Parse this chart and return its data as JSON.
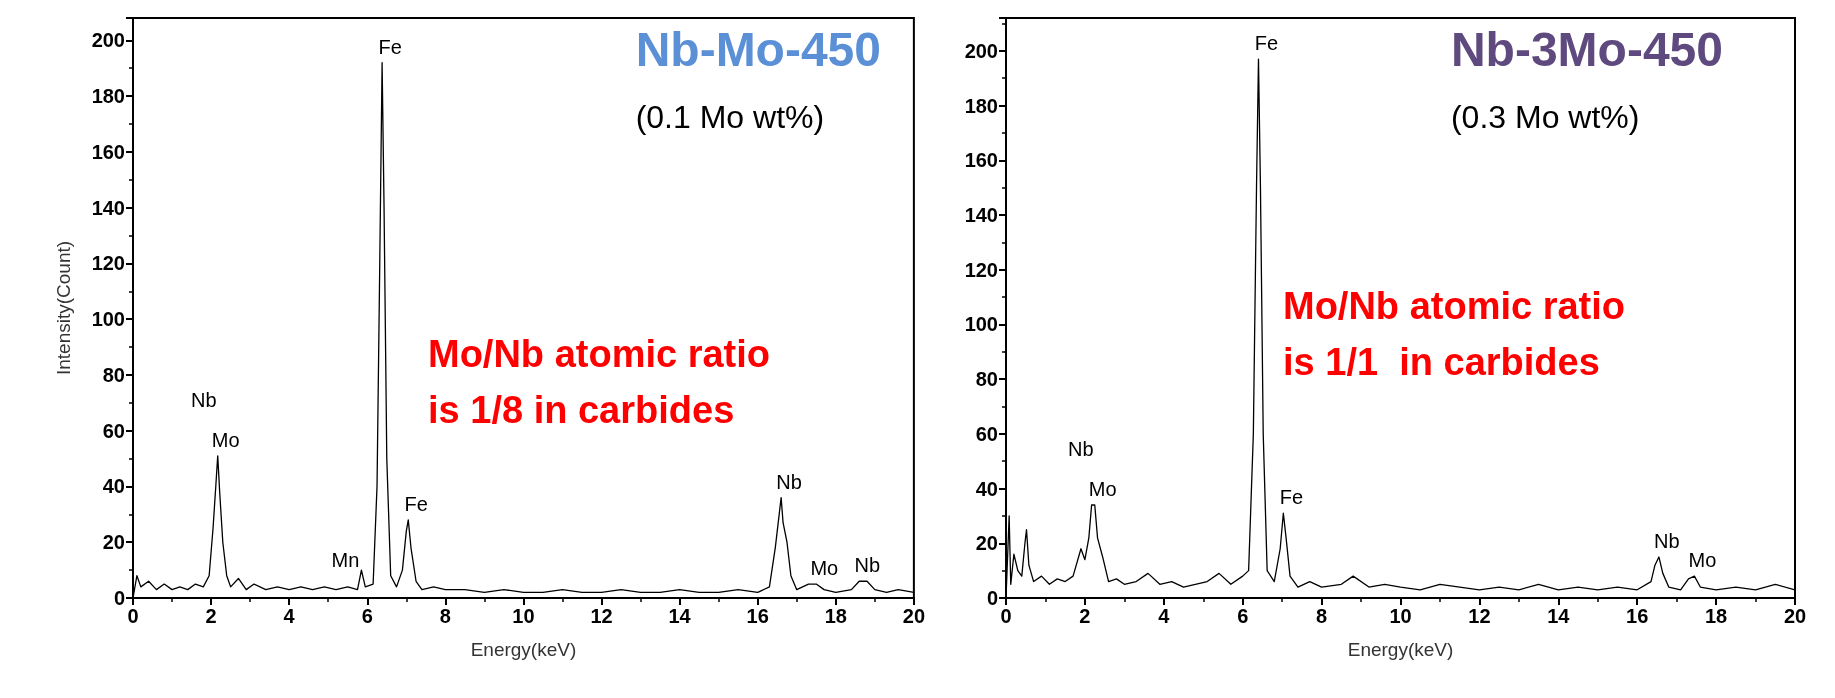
{
  "chart_data": [
    {
      "type": "line",
      "title": "Nb-Mo-450",
      "subtitle": "(0.1 Mo wt%)",
      "xlabel": "Energy(keV)",
      "ylabel": "Intensity(Count)",
      "xlim": [
        0,
        20
      ],
      "xticks": [
        0,
        2,
        4,
        6,
        8,
        10,
        12,
        14,
        16,
        18,
        20
      ],
      "ylim": [
        0,
        208
      ],
      "yticks": [
        0,
        20,
        40,
        60,
        80,
        100,
        120,
        140,
        160,
        180,
        200
      ],
      "grid": false,
      "marker": "none",
      "line_style": "solid",
      "series": [
        {
          "color": "#000000",
          "x": [
            0,
            0.1,
            0.2,
            0.4,
            0.6,
            0.8,
            1.0,
            1.2,
            1.4,
            1.6,
            1.8,
            1.95,
            2.05,
            2.12,
            2.17,
            2.22,
            2.3,
            2.4,
            2.5,
            2.7,
            2.9,
            3.1,
            3.4,
            3.7,
            4.0,
            4.3,
            4.6,
            4.9,
            5.2,
            5.5,
            5.75,
            5.85,
            5.95,
            6.15,
            6.25,
            6.32,
            6.38,
            6.43,
            6.5,
            6.6,
            6.75,
            6.9,
            7.0,
            7.05,
            7.12,
            7.25,
            7.4,
            7.7,
            8.0,
            8.5,
            9.0,
            9.5,
            10,
            10.5,
            11,
            11.5,
            12,
            12.5,
            13,
            13.5,
            14,
            14.5,
            15,
            15.5,
            16,
            16.3,
            16.45,
            16.55,
            16.6,
            16.65,
            16.75,
            16.85,
            17.0,
            17.3,
            17.5,
            17.7,
            18,
            18.4,
            18.6,
            18.8,
            19,
            19.3,
            19.6,
            20
          ],
          "values": [
            0,
            8,
            4,
            6,
            3,
            5,
            3,
            4,
            3,
            5,
            4,
            8,
            25,
            40,
            51,
            38,
            20,
            8,
            4,
            7,
            3,
            5,
            3,
            4,
            3,
            4,
            3,
            4,
            3,
            4,
            3,
            10,
            4,
            5,
            40,
            120,
            192,
            140,
            50,
            8,
            4,
            10,
            24,
            28,
            18,
            6,
            3,
            4,
            3,
            3,
            2,
            3,
            2,
            2,
            3,
            2,
            2,
            3,
            2,
            2,
            3,
            2,
            2,
            3,
            2,
            4,
            18,
            30,
            36,
            27,
            20,
            8,
            3,
            5,
            5,
            3,
            2,
            3,
            6,
            6,
            3,
            2,
            3,
            2
          ]
        }
      ],
      "annotations": [
        {
          "text": "Fe",
          "x": 6.38,
          "y": 192
        },
        {
          "text": "Nb",
          "x": 2.17,
          "y": 51
        },
        {
          "text": "Mo",
          "x": 2.17,
          "y": 51
        },
        {
          "text": "Mn",
          "x": 5.85,
          "y": 10
        },
        {
          "text": "Fe",
          "x": 7.05,
          "y": 28
        },
        {
          "text": "Nb",
          "x": 16.6,
          "y": 36
        },
        {
          "text": "Mo",
          "x": 17.5,
          "y": 5
        },
        {
          "text": "Nb",
          "x": 18.6,
          "y": 6
        },
        "Mo/Nb atomic ratio\nis 1/8 in carbides"
      ]
    },
    {
      "type": "line",
      "title": "Nb-3Mo-450",
      "subtitle": "(0.3 Mo wt%)",
      "xlabel": "Energy(keV)",
      "xlim": [
        0,
        20
      ],
      "xticks": [
        0,
        2,
        4,
        6,
        8,
        10,
        12,
        14,
        16,
        18,
        20
      ],
      "ylim": [
        0,
        212
      ],
      "yticks": [
        0,
        20,
        40,
        60,
        80,
        100,
        120,
        140,
        160,
        180,
        200
      ],
      "grid": false,
      "marker": "none",
      "line_style": "solid",
      "series": [
        {
          "color": "#000000",
          "x": [
            0,
            0.08,
            0.12,
            0.2,
            0.3,
            0.4,
            0.48,
            0.52,
            0.58,
            0.7,
            0.9,
            1.1,
            1.3,
            1.5,
            1.7,
            1.9,
            2.0,
            2.1,
            2.17,
            2.25,
            2.32,
            2.45,
            2.6,
            2.8,
            3.0,
            3.3,
            3.6,
            3.9,
            4.2,
            4.5,
            4.8,
            5.1,
            5.4,
            5.7,
            6.0,
            6.15,
            6.27,
            6.35,
            6.4,
            6.45,
            6.52,
            6.62,
            6.8,
            6.95,
            7.03,
            7.1,
            7.2,
            7.4,
            7.7,
            8.0,
            8.5,
            8.8,
            9.2,
            9.6,
            10,
            10.5,
            11,
            11.5,
            12,
            12.5,
            13,
            13.5,
            14,
            14.5,
            15,
            15.5,
            16,
            16.35,
            16.45,
            16.55,
            16.65,
            16.8,
            17.1,
            17.3,
            17.45,
            17.6,
            18,
            18.5,
            19,
            19.5,
            20
          ],
          "values": [
            0,
            30,
            5,
            16,
            10,
            8,
            20,
            25,
            12,
            6,
            8,
            5,
            7,
            6,
            8,
            18,
            14,
            22,
            34,
            34,
            22,
            15,
            6,
            7,
            5,
            6,
            9,
            5,
            6,
            4,
            5,
            6,
            9,
            5,
            8,
            10,
            60,
            150,
            197,
            150,
            60,
            10,
            6,
            18,
            31,
            22,
            8,
            4,
            6,
            4,
            5,
            8,
            4,
            5,
            4,
            3,
            5,
            4,
            3,
            4,
            3,
            5,
            3,
            4,
            3,
            4,
            3,
            6,
            12,
            15,
            9,
            4,
            3,
            7,
            8,
            4,
            3,
            4,
            3,
            5,
            3
          ]
        }
      ],
      "annotations": [
        {
          "text": "Fe",
          "x": 6.4,
          "y": 197
        },
        {
          "text": "Nb",
          "x": 2.25,
          "y": 34
        },
        {
          "text": "Mo",
          "x": 2.25,
          "y": 34
        },
        {
          "text": "Fe",
          "x": 7.03,
          "y": 31
        },
        {
          "text": "Nb",
          "x": 16.55,
          "y": 15
        },
        {
          "text": "Mo",
          "x": 17.45,
          "y": 8
        },
        "Mo/Nb atomic ratio\nis 1/1  in carbides"
      ]
    }
  ]
}
